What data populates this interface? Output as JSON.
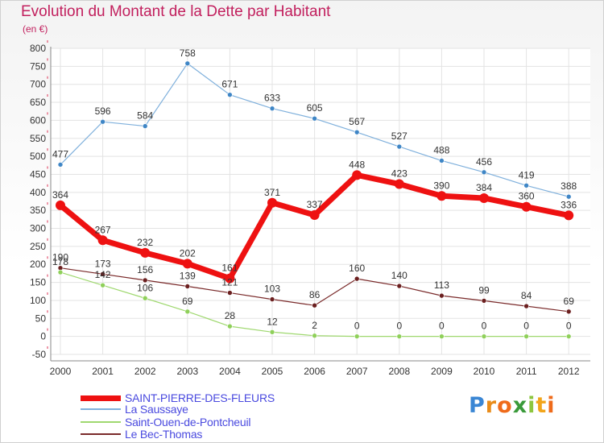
{
  "title": "Evolution du Montant de la Dette par Habitant",
  "subtitle": "(en €)",
  "brand": {
    "letters": [
      "P",
      "r",
      "o",
      "x",
      "i",
      "t",
      "i"
    ],
    "colors": [
      "#3a86d4",
      "#e98c1a",
      "#ef6b1a",
      "#3a9a3a",
      "#8dc63f",
      "#f2a51a",
      "#ef6b1a"
    ]
  },
  "chart_data": {
    "type": "line",
    "x": [
      "2000",
      "2001",
      "2002",
      "2003",
      "2004",
      "2005",
      "2006",
      "2007",
      "2008",
      "2009",
      "2010",
      "2011",
      "2012"
    ],
    "ylim": [
      -50,
      800
    ],
    "yticks": [
      -50,
      0,
      50,
      100,
      150,
      200,
      250,
      300,
      350,
      400,
      450,
      500,
      550,
      600,
      650,
      700,
      750,
      800
    ],
    "grid": true,
    "series": [
      {
        "name": "SAINT-PIERRE-DES-FLEURS",
        "color": "#ee1111",
        "marker": "#ee1111",
        "width": 7,
        "radius": 6,
        "values": [
          364,
          267,
          232,
          202,
          161,
          371,
          337,
          448,
          423,
          390,
          384,
          360,
          336
        ]
      },
      {
        "name": "La Saussaye",
        "color": "#7fb0dc",
        "marker": "#3f86c6",
        "width": 1.2,
        "radius": 3,
        "values": [
          477,
          596,
          584,
          758,
          671,
          633,
          605,
          567,
          527,
          488,
          456,
          419,
          388
        ]
      },
      {
        "name": "Saint-Ouen-de-Pontcheuil",
        "color": "#9fd86f",
        "marker": "#8fd05a",
        "width": 1.2,
        "radius": 3,
        "values": [
          178,
          142,
          106,
          69,
          28,
          12,
          2,
          0,
          0,
          0,
          0,
          0,
          0
        ]
      },
      {
        "name": "Le Bec-Thomas",
        "color": "#7a2a2a",
        "marker": "#6b1f1f",
        "width": 1.2,
        "radius": 3,
        "values": [
          190,
          173,
          156,
          139,
          121,
          103,
          86,
          160,
          140,
          113,
          99,
          84,
          69
        ]
      }
    ]
  }
}
